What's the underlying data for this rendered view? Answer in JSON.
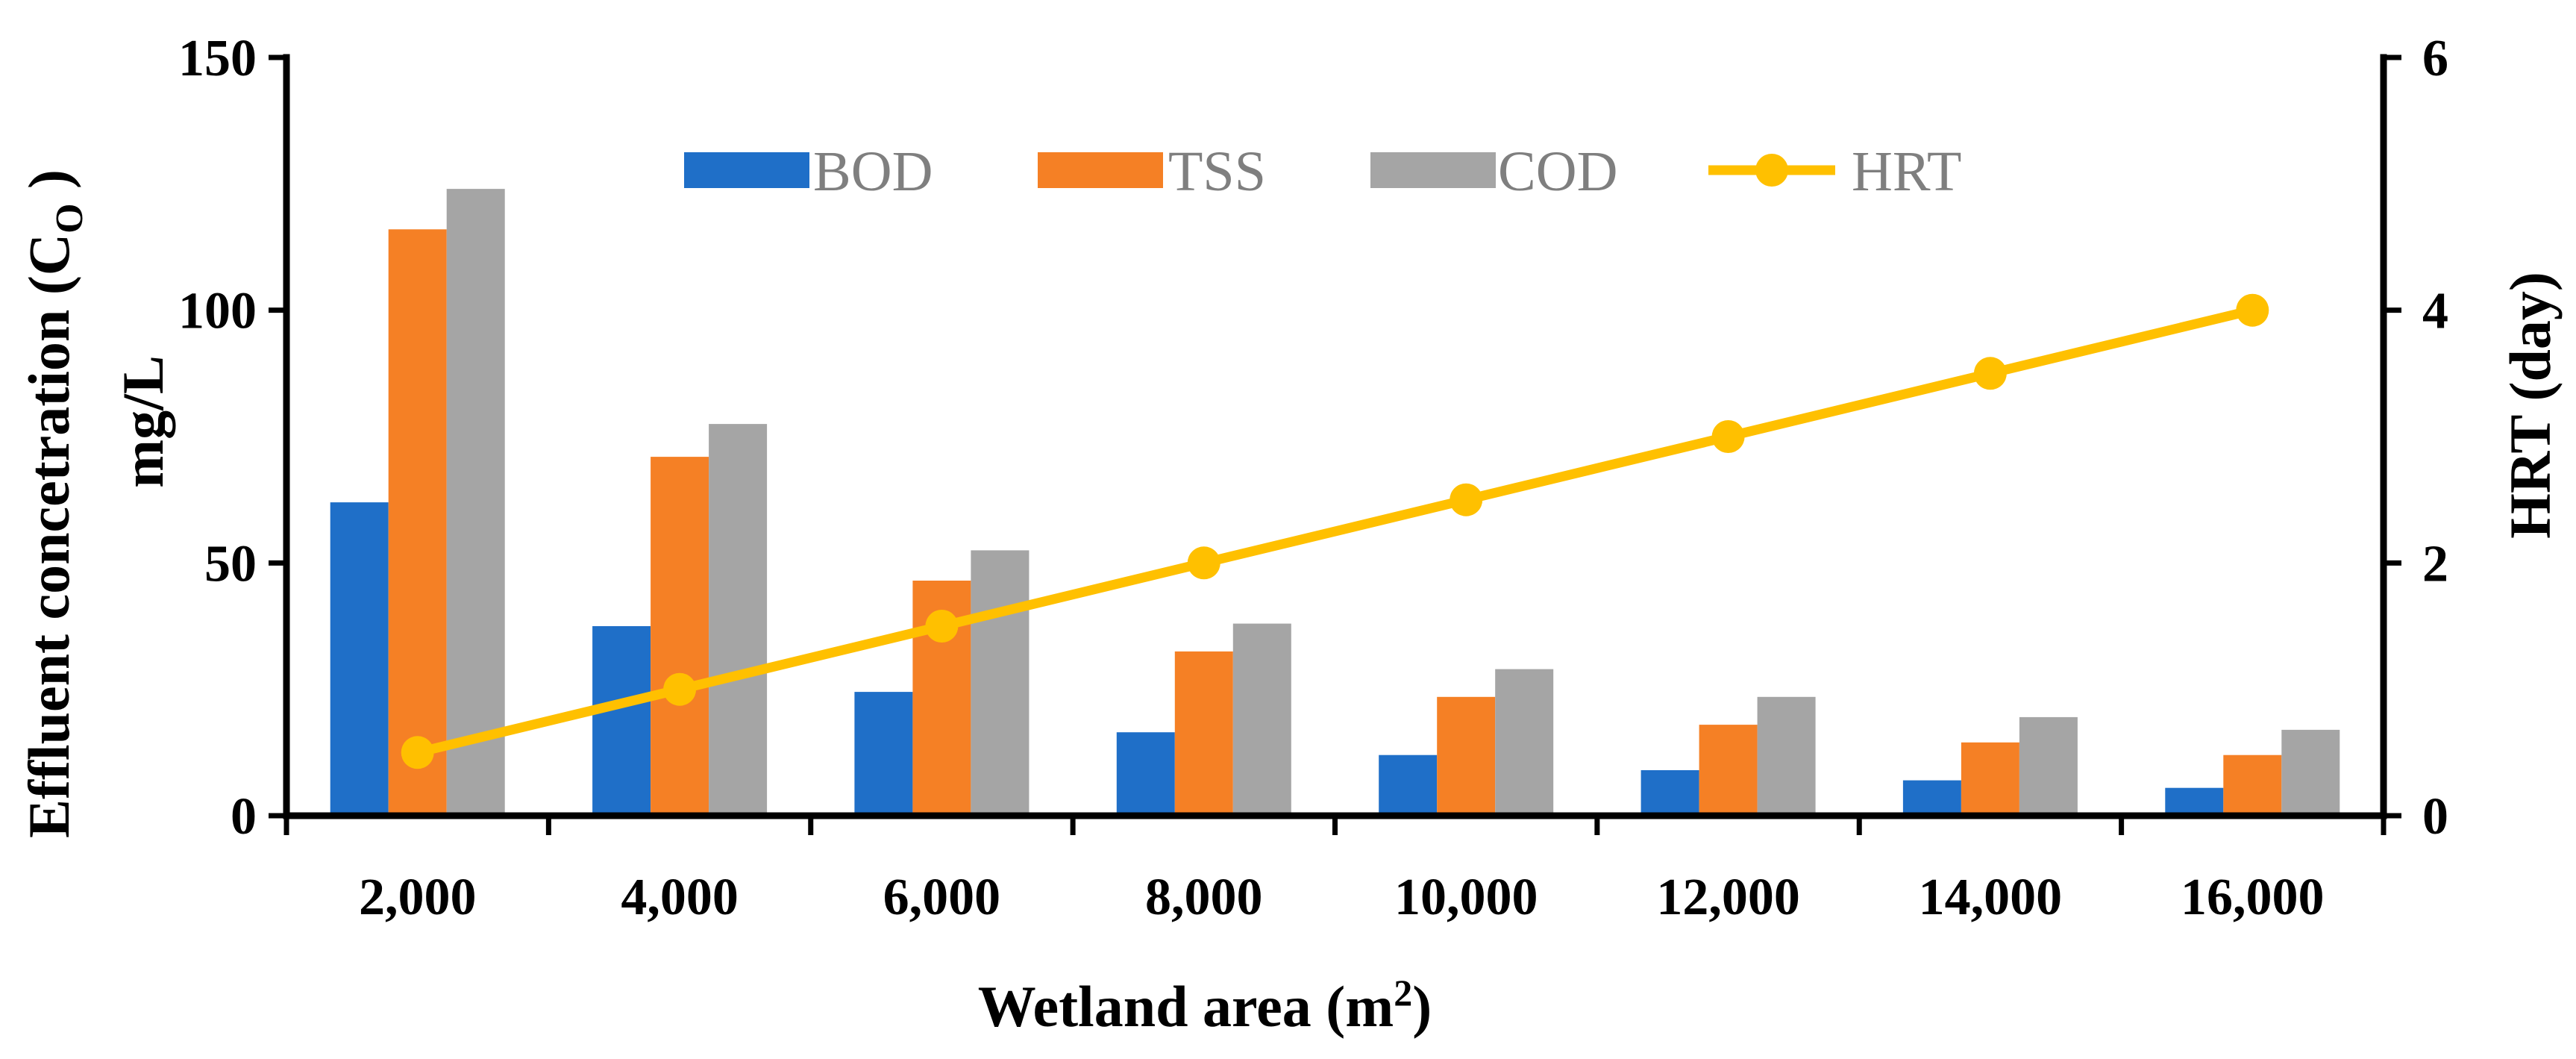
{
  "chart_data": {
    "type": "bar",
    "categories": [
      "2,000",
      "4,000",
      "6,000",
      "8,000",
      "10,000",
      "12,000",
      "14,000",
      "16,000"
    ],
    "series": [
      {
        "name": "BOD",
        "axis": "left",
        "kind": "bar",
        "color": "#1f6fc8",
        "values": [
          62,
          37.5,
          24.5,
          16.5,
          12,
          9,
          7,
          5.5
        ]
      },
      {
        "name": "TSS",
        "axis": "left",
        "kind": "bar",
        "color": "#f58025",
        "values": [
          116,
          71,
          46.5,
          32.5,
          23.5,
          18,
          14.5,
          12
        ]
      },
      {
        "name": "COD",
        "axis": "left",
        "kind": "bar",
        "color": "#a5a5a5",
        "values": [
          124,
          77.5,
          52.5,
          38,
          29,
          23.5,
          19.5,
          17
        ]
      },
      {
        "name": "HRT",
        "axis": "right",
        "kind": "line",
        "color": "#ffc000",
        "values": [
          0.5,
          1,
          1.5,
          2,
          2.5,
          3,
          3.5,
          4
        ]
      }
    ],
    "xlabel": {
      "main": "Wetland area (m",
      "sup": "2",
      "end": ")"
    },
    "ylabel": {
      "line1_main": "Effluent concetration (C",
      "line1_sub": "O",
      "line1_end": " )",
      "line2": "mg/L"
    },
    "y2label": "HRT (day)",
    "ylim": [
      0,
      150
    ],
    "yticks": [
      "0",
      "50",
      "100",
      "150"
    ],
    "y2lim": [
      0,
      6
    ],
    "y2ticks": [
      "0",
      "2",
      "4",
      "6"
    ],
    "legend": [
      "BOD",
      "TSS",
      "COD",
      "HRT"
    ],
    "legend_position": "top-center",
    "grid": false
  }
}
